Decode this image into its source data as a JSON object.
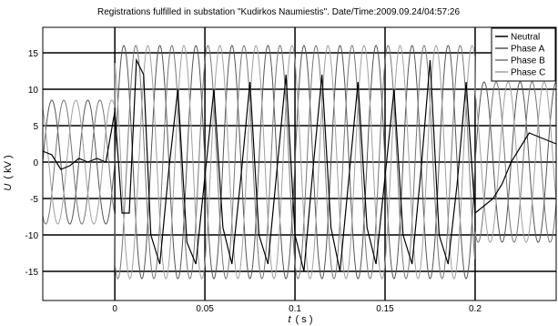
{
  "chart_data": {
    "type": "line",
    "title": "Registrations fulfilled in substation \"Kudirkos Naumiestis\". Date/Time:2009.09.24/04:57:26",
    "xlabel_var": "t",
    "xlabel_unit": "( s )",
    "ylabel_var": "U",
    "ylabel_unit": "( kV )",
    "xlim": [
      -0.04,
      0.245
    ],
    "ylim": [
      -19,
      18.5
    ],
    "x_ticks": [
      {
        "value": 0,
        "label": "0"
      },
      {
        "value": 0.05,
        "label": "0.05"
      },
      {
        "value": 0.1,
        "label": "0.1"
      },
      {
        "value": 0.15,
        "label": "0.15"
      },
      {
        "value": 0.2,
        "label": "0.2"
      }
    ],
    "y_ticks": [
      {
        "value": -15,
        "label": "-15"
      },
      {
        "value": -10,
        "label": "-10"
      },
      {
        "value": -5,
        "label": "-5"
      },
      {
        "value": 0,
        "label": "0"
      },
      {
        "value": 5,
        "label": "5"
      },
      {
        "value": 10,
        "label": "10"
      },
      {
        "value": 15,
        "label": "15"
      }
    ],
    "grid": true,
    "legend_position": "top-right",
    "colors": {
      "Neutral": "#000000",
      "Phase A": "#555555",
      "Phase B": "#777777",
      "Phase C": "#a0a0a0"
    },
    "series": [
      {
        "name": "Neutral",
        "x": [
          -0.04,
          -0.035,
          -0.03,
          -0.025,
          -0.02,
          -0.015,
          -0.01,
          -0.005,
          0,
          0.004,
          0.008,
          0.012,
          0.016,
          0.02,
          0.025,
          0.03,
          0.035,
          0.04,
          0.045,
          0.05,
          0.055,
          0.06,
          0.065,
          0.07,
          0.075,
          0.08,
          0.085,
          0.09,
          0.095,
          0.1,
          0.105,
          0.11,
          0.115,
          0.12,
          0.125,
          0.13,
          0.135,
          0.14,
          0.145,
          0.15,
          0.155,
          0.16,
          0.165,
          0.17,
          0.175,
          0.18,
          0.185,
          0.19,
          0.195,
          0.2,
          0.205,
          0.21,
          0.215,
          0.22,
          0.225,
          0.23,
          0.235,
          0.24,
          0.245
        ],
        "y": [
          1.5,
          1,
          -1,
          -0.5,
          0.5,
          0,
          0.5,
          0,
          7,
          -7,
          -7,
          14,
          12,
          -10,
          -14,
          -1,
          10,
          -11,
          -14,
          -2,
          10,
          -9,
          -14,
          -2,
          11,
          -10,
          -14,
          -1,
          12,
          -10,
          -15,
          -1,
          12,
          -9,
          -15,
          -2,
          11,
          -9,
          -14,
          -2,
          10,
          -10,
          -14,
          -1,
          14,
          -10,
          -14,
          -3,
          11,
          -7,
          -6,
          -5,
          -3,
          0,
          2,
          4,
          3.5,
          3,
          2.5
        ]
      }
    ]
  },
  "legend": {
    "entries": [
      {
        "label": "Neutral"
      },
      {
        "label": "Phase A"
      },
      {
        "label": "Phase B"
      },
      {
        "label": "Phase C"
      }
    ]
  }
}
